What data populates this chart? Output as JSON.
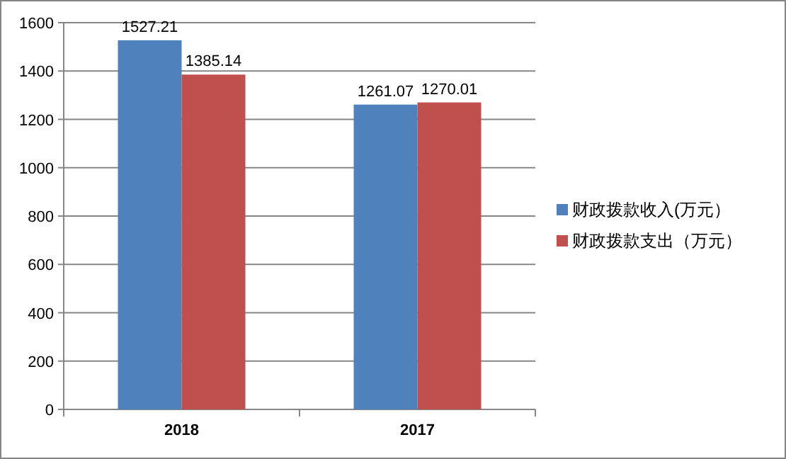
{
  "chart_data": {
    "type": "bar",
    "categories": [
      "2018",
      "2017"
    ],
    "series": [
      {
        "name": "财政拨款收入(万元）",
        "color": "#4f81bd",
        "values": [
          1527.21,
          1261.07
        ]
      },
      {
        "name": "财政拨款支出（万元）",
        "color": "#c0504d",
        "values": [
          1385.14,
          1270.01
        ]
      }
    ],
    "ylim": [
      0,
      1600
    ],
    "yticks": [
      0,
      200,
      400,
      600,
      800,
      1000,
      1200,
      1400,
      1600
    ],
    "grid": "y",
    "legend": "right",
    "data_labels": true
  }
}
